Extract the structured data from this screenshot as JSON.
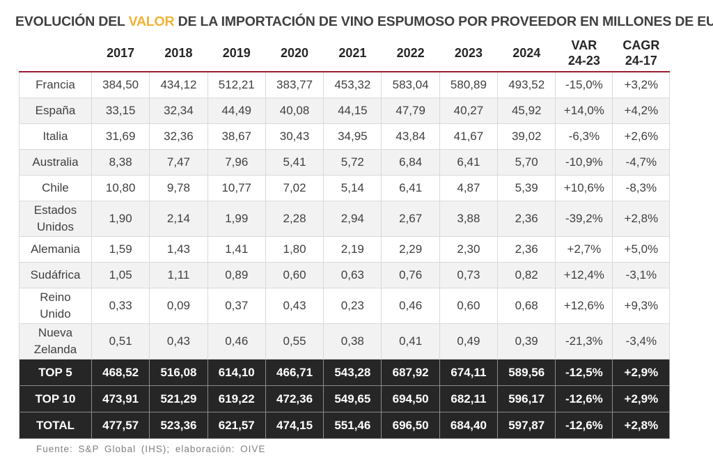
{
  "title": {
    "before": "EVOLUCIÓN DEL ",
    "highlight": "VALOR",
    "after": " DE LA IMPORTACIÓN DE VINO ESPUMOSO POR PROVEEDOR EN MILLONES DE EUROS",
    "highlight_color": "#f2b233"
  },
  "header": {
    "years": [
      "2017",
      "2018",
      "2019",
      "2020",
      "2021",
      "2022",
      "2023",
      "2024"
    ],
    "var_top": "VAR",
    "var_bottom": "24-23",
    "cagr_top": "CAGR",
    "cagr_bottom": "24-17"
  },
  "colors": {
    "header_rule": "#9b1b30",
    "total_row_bg": "#262626",
    "stripe_bg": "#f2f2f2"
  },
  "source": "Fuente: S&P Global (IHS); elaboración: OIVE",
  "chart_data": {
    "type": "table",
    "columns": [
      "2017",
      "2018",
      "2019",
      "2020",
      "2021",
      "2022",
      "2023",
      "2024",
      "VAR 24-23",
      "CAGR 24-17"
    ],
    "rows": [
      {
        "label": [
          "Francia"
        ],
        "values": [
          "384,50",
          "434,12",
          "512,21",
          "383,77",
          "453,32",
          "583,04",
          "580,89",
          "493,52",
          "-15,0%",
          "+3,2%"
        ]
      },
      {
        "label": [
          "España"
        ],
        "values": [
          "33,15",
          "32,34",
          "44,49",
          "40,08",
          "44,15",
          "47,79",
          "40,27",
          "45,92",
          "+14,0%",
          "+4,2%"
        ]
      },
      {
        "label": [
          "Italia"
        ],
        "values": [
          "31,69",
          "32,36",
          "38,67",
          "30,43",
          "34,95",
          "43,84",
          "41,67",
          "39,02",
          "-6,3%",
          "+2,6%"
        ]
      },
      {
        "label": [
          "Australia"
        ],
        "values": [
          "8,38",
          "7,47",
          "7,96",
          "5,41",
          "5,72",
          "6,84",
          "6,41",
          "5,70",
          "-10,9%",
          "-4,7%"
        ]
      },
      {
        "label": [
          "Chile"
        ],
        "values": [
          "10,80",
          "9,78",
          "10,77",
          "7,02",
          "5,14",
          "6,41",
          "4,87",
          "5,39",
          "+10,6%",
          "-8,3%"
        ]
      },
      {
        "label": [
          "Estados",
          "Unidos"
        ],
        "values": [
          "1,90",
          "2,14",
          "1,99",
          "2,28",
          "2,94",
          "2,67",
          "3,88",
          "2,36",
          "-39,2%",
          "+2,8%"
        ]
      },
      {
        "label": [
          "Alemania"
        ],
        "values": [
          "1,59",
          "1,43",
          "1,41",
          "1,80",
          "2,19",
          "2,29",
          "2,30",
          "2,36",
          "+2,7%",
          "+5,0%"
        ]
      },
      {
        "label": [
          "Sudáfrica"
        ],
        "values": [
          "1,05",
          "1,11",
          "0,89",
          "0,60",
          "0,63",
          "0,76",
          "0,73",
          "0,82",
          "+12,4%",
          "-3,1%"
        ]
      },
      {
        "label": [
          "Reino",
          "Unido"
        ],
        "values": [
          "0,33",
          "0,09",
          "0,37",
          "0,43",
          "0,23",
          "0,46",
          "0,60",
          "0,68",
          "+12,6%",
          "+9,3%"
        ]
      },
      {
        "label": [
          "Nueva",
          "Zelanda"
        ],
        "values": [
          "0,51",
          "0,43",
          "0,46",
          "0,55",
          "0,38",
          "0,41",
          "0,49",
          "0,39",
          "-21,3%",
          "-3,4%"
        ]
      }
    ],
    "totals": [
      {
        "label": "TOP 5",
        "values": [
          "468,52",
          "516,08",
          "614,10",
          "466,71",
          "543,28",
          "687,92",
          "674,11",
          "589,56",
          "-12,5%",
          "+2,9%"
        ]
      },
      {
        "label": "TOP 10",
        "values": [
          "473,91",
          "521,29",
          "619,22",
          "472,36",
          "549,65",
          "694,50",
          "682,11",
          "596,17",
          "-12,6%",
          "+2,9%"
        ]
      },
      {
        "label": "TOTAL",
        "values": [
          "477,57",
          "523,36",
          "621,57",
          "474,15",
          "551,46",
          "696,50",
          "684,40",
          "597,87",
          "-12,6%",
          "+2,8%"
        ]
      }
    ]
  }
}
